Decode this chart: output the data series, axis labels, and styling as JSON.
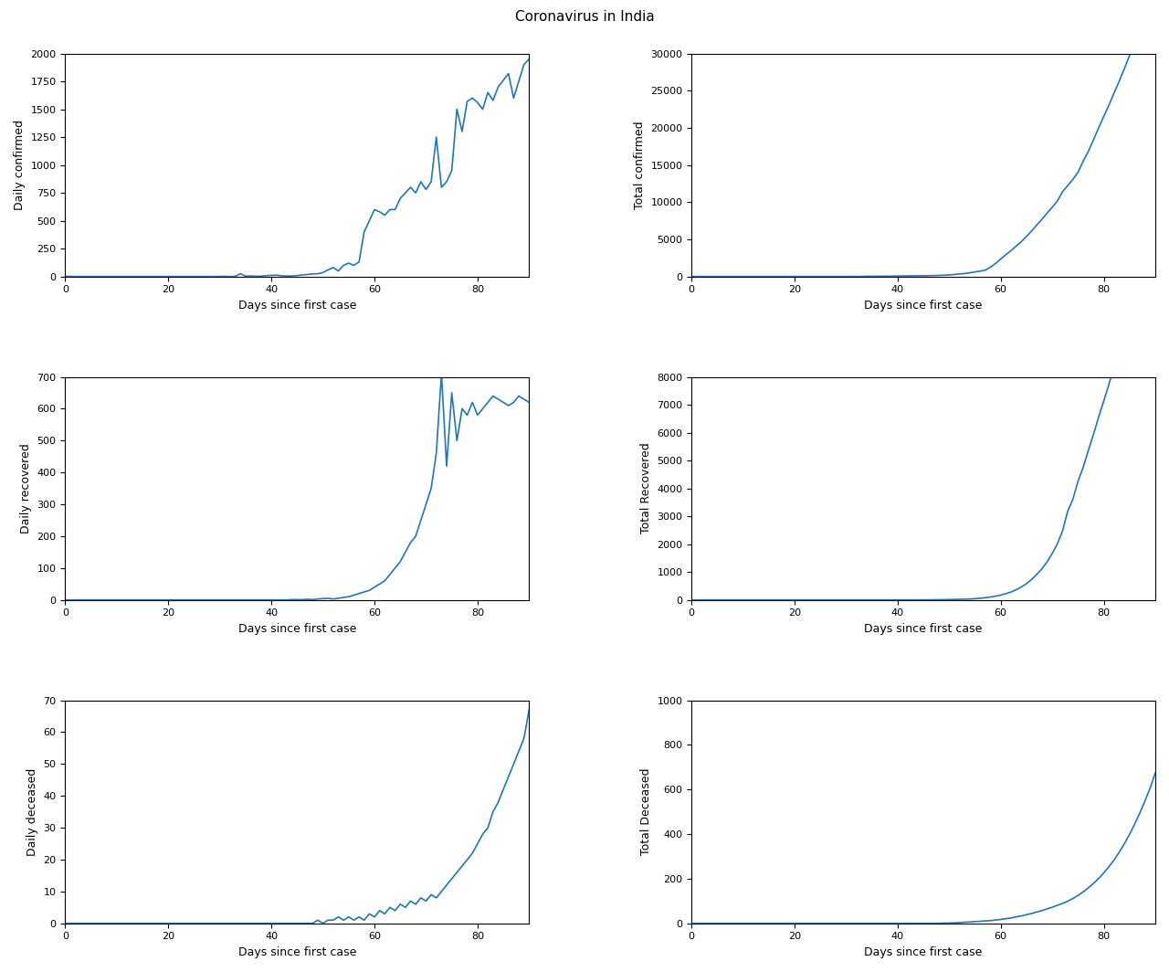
{
  "title": "Coronavirus in India",
  "days": 91,
  "line_color": "#1f77b4",
  "line_width": 1.2,
  "xlabel": "Days since first case",
  "subplots": [
    {
      "ylabel": "Daily confirmed",
      "ylim": [
        0,
        2000
      ],
      "yticks": [
        0,
        250,
        500,
        750,
        1000,
        1250,
        1500,
        1750,
        2000
      ],
      "type": "daily_confirmed"
    },
    {
      "ylabel": "Total confirmed",
      "ylim": [
        0,
        30000
      ],
      "yticks": [
        0,
        5000,
        10000,
        15000,
        20000,
        25000,
        30000
      ],
      "type": "total_confirmed"
    },
    {
      "ylabel": "Daily recovered",
      "ylim": [
        0,
        700
      ],
      "yticks": [
        0,
        100,
        200,
        300,
        400,
        500,
        600,
        700
      ],
      "type": "daily_recovered"
    },
    {
      "ylabel": "Total Recovered",
      "ylim": [
        0,
        8000
      ],
      "yticks": [
        0,
        1000,
        2000,
        3000,
        4000,
        5000,
        6000,
        7000,
        8000
      ],
      "type": "total_recovered"
    },
    {
      "ylabel": "Daily deceased",
      "ylim": [
        0,
        70
      ],
      "yticks": [
        0,
        10,
        20,
        30,
        40,
        50,
        60,
        70
      ],
      "type": "daily_deceased"
    },
    {
      "ylabel": "Total Deceased",
      "ylim": [
        0,
        1000
      ],
      "yticks": [
        0,
        200,
        400,
        600,
        800,
        1000
      ],
      "type": "total_deceased"
    }
  ],
  "daily_confirmed": [
    1,
    1,
    0,
    0,
    0,
    0,
    0,
    0,
    0,
    0,
    0,
    0,
    0,
    0,
    0,
    0,
    0,
    0,
    0,
    0,
    0,
    0,
    0,
    0,
    0,
    0,
    0,
    0,
    0,
    0,
    1,
    1,
    0,
    1,
    25,
    2,
    5,
    2,
    3,
    8,
    10,
    12,
    6,
    4,
    5,
    8,
    14,
    18,
    23,
    25,
    35,
    60,
    80,
    50,
    100,
    120,
    100,
    130,
    400,
    500,
    600,
    580,
    550,
    600,
    600,
    700,
    750,
    800,
    750,
    850,
    780,
    850,
    1250,
    800,
    850,
    950,
    1500,
    1300,
    1570,
    1600,
    1560,
    1500,
    1650,
    1580,
    1700,
    1760,
    1820,
    1600,
    1750,
    1900,
    1950
  ],
  "daily_recovered": [
    0,
    0,
    0,
    0,
    0,
    0,
    0,
    0,
    0,
    0,
    0,
    0,
    0,
    0,
    0,
    0,
    0,
    0,
    0,
    0,
    0,
    0,
    0,
    0,
    0,
    0,
    0,
    0,
    0,
    0,
    0,
    0,
    0,
    0,
    0,
    0,
    0,
    0,
    0,
    0,
    0,
    0,
    0,
    0,
    1,
    1,
    1,
    2,
    1,
    3,
    4,
    5,
    3,
    5,
    8,
    10,
    15,
    20,
    25,
    30,
    40,
    50,
    60,
    80,
    100,
    120,
    150,
    180,
    200,
    250,
    300,
    350,
    460,
    710,
    420,
    650,
    500,
    600,
    580,
    620,
    580,
    600,
    620,
    640,
    630,
    620,
    610,
    620,
    640,
    630,
    620
  ],
  "daily_deceased": [
    0,
    0,
    0,
    0,
    0,
    0,
    0,
    0,
    0,
    0,
    0,
    0,
    0,
    0,
    0,
    0,
    0,
    0,
    0,
    0,
    0,
    0,
    0,
    0,
    0,
    0,
    0,
    0,
    0,
    0,
    0,
    0,
    0,
    0,
    0,
    0,
    0,
    0,
    0,
    0,
    0,
    0,
    0,
    0,
    0,
    0,
    0,
    0,
    0,
    1,
    0,
    1,
    1,
    2,
    1,
    2,
    1,
    2,
    1,
    3,
    2,
    4,
    3,
    5,
    4,
    6,
    5,
    7,
    6,
    8,
    7,
    9,
    8,
    10,
    12,
    14,
    16,
    18,
    20,
    22,
    25,
    28,
    30,
    35,
    38,
    42,
    46,
    50,
    54,
    58,
    67
  ]
}
